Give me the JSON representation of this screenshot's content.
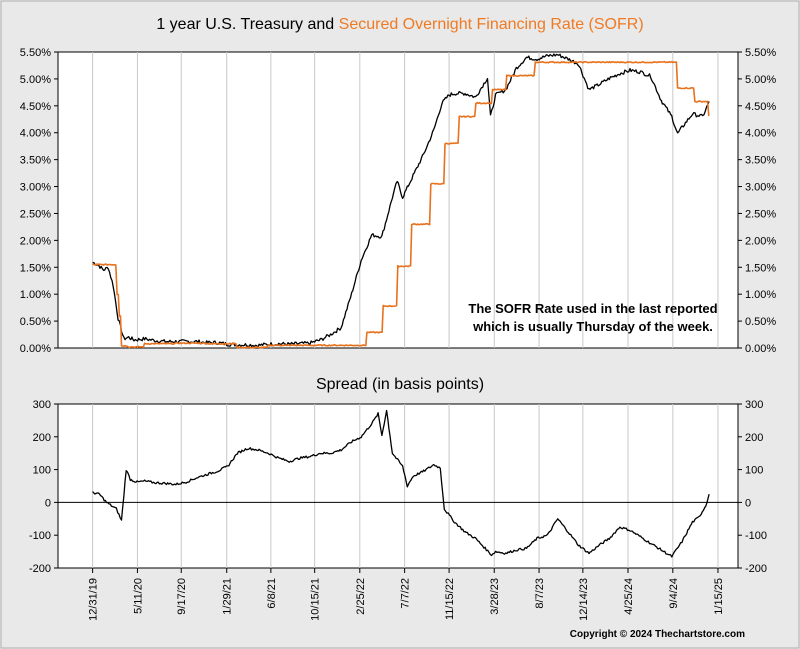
{
  "chart_data": [
    {
      "type": "line",
      "title_part1": "1 year U.S. Treasury and ",
      "title_part2": "Secured Overnight Financing Rate (SOFR)",
      "title_colors": {
        "part1": "#000000",
        "part2": "#f07a22"
      },
      "ylim": [
        0,
        5.5
      ],
      "y_ticks": [
        "0.00%",
        "0.50%",
        "1.00%",
        "1.50%",
        "2.00%",
        "2.50%",
        "3.00%",
        "3.50%",
        "4.00%",
        "4.50%",
        "5.00%",
        "5.50%"
      ],
      "grid": "vertical",
      "annotation_line1": "The SOFR Rate used in the last reported",
      "annotation_line2": "which is usually Thursday of the week.",
      "series": [
        {
          "color": "#000000",
          "points": [
            [
              "2019-12-31",
              1.59
            ],
            [
              "2020-01-15",
              1.55
            ],
            [
              "2020-02-01",
              1.45
            ],
            [
              "2020-02-15",
              1.5
            ],
            [
              "2020-03-01",
              1.15
            ],
            [
              "2020-03-15",
              0.55
            ],
            [
              "2020-04-01",
              0.17
            ],
            [
              "2020-04-15",
              0.2
            ],
            [
              "2020-05-01",
              0.15
            ],
            [
              "2020-06-01",
              0.17
            ],
            [
              "2020-07-01",
              0.14
            ],
            [
              "2020-08-01",
              0.12
            ],
            [
              "2020-09-01",
              0.12
            ],
            [
              "2020-10-01",
              0.12
            ],
            [
              "2020-11-01",
              0.12
            ],
            [
              "2020-12-01",
              0.1
            ],
            [
              "2021-01-01",
              0.1
            ],
            [
              "2021-02-01",
              0.07
            ],
            [
              "2021-03-01",
              0.06
            ],
            [
              "2021-04-01",
              0.06
            ],
            [
              "2021-05-01",
              0.05
            ],
            [
              "2021-06-01",
              0.07
            ],
            [
              "2021-07-01",
              0.08
            ],
            [
              "2021-08-01",
              0.07
            ],
            [
              "2021-09-01",
              0.08
            ],
            [
              "2021-10-01",
              0.09
            ],
            [
              "2021-11-01",
              0.15
            ],
            [
              "2021-12-01",
              0.25
            ],
            [
              "2022-01-01",
              0.38
            ],
            [
              "2022-02-01",
              1.01
            ],
            [
              "2022-03-01",
              1.63
            ],
            [
              "2022-04-01",
              2.1
            ],
            [
              "2022-05-01",
              2.07
            ],
            [
              "2022-06-01",
              2.8
            ],
            [
              "2022-06-15",
              3.1
            ],
            [
              "2022-07-01",
              2.8
            ],
            [
              "2022-08-01",
              3.2
            ],
            [
              "2022-09-01",
              3.6
            ],
            [
              "2022-10-01",
              4.05
            ],
            [
              "2022-10-25",
              4.55
            ],
            [
              "2022-11-15",
              4.7
            ],
            [
              "2022-12-01",
              4.73
            ],
            [
              "2023-01-01",
              4.73
            ],
            [
              "2023-02-01",
              4.66
            ],
            [
              "2023-03-08",
              5.02
            ],
            [
              "2023-03-17",
              4.3
            ],
            [
              "2023-04-01",
              4.7
            ],
            [
              "2023-05-01",
              4.8
            ],
            [
              "2023-06-01",
              5.2
            ],
            [
              "2023-07-01",
              5.4
            ],
            [
              "2023-08-01",
              5.37
            ],
            [
              "2023-09-01",
              5.43
            ],
            [
              "2023-10-01",
              5.45
            ],
            [
              "2023-11-01",
              5.37
            ],
            [
              "2023-12-01",
              5.28
            ],
            [
              "2024-01-01",
              4.8
            ],
            [
              "2024-02-01",
              4.9
            ],
            [
              "2024-03-01",
              5.01
            ],
            [
              "2024-04-01",
              5.1
            ],
            [
              "2024-05-01",
              5.16
            ],
            [
              "2024-06-01",
              5.13
            ],
            [
              "2024-07-01",
              5.05
            ],
            [
              "2024-08-01",
              4.6
            ],
            [
              "2024-09-01",
              4.3
            ],
            [
              "2024-09-18",
              3.98
            ],
            [
              "2024-10-01",
              4.1
            ],
            [
              "2024-11-01",
              4.35
            ],
            [
              "2024-12-01",
              4.3
            ],
            [
              "2024-12-20",
              4.58
            ]
          ]
        },
        {
          "color": "#e8711c",
          "points": [
            [
              "2019-12-31",
              1.55
            ],
            [
              "2020-03-01",
              1.55
            ],
            [
              "2020-03-12",
              1.0
            ],
            [
              "2020-03-19",
              0.6
            ],
            [
              "2020-03-25",
              0.04
            ],
            [
              "2020-04-15",
              0.02
            ],
            [
              "2020-06-01",
              0.08
            ],
            [
              "2020-09-01",
              0.09
            ],
            [
              "2020-12-01",
              0.08
            ],
            [
              "2021-03-01",
              0.01
            ],
            [
              "2021-06-01",
              0.05
            ],
            [
              "2022-01-01",
              0.05
            ],
            [
              "2022-03-18",
              0.29
            ],
            [
              "2022-05-05",
              0.78
            ],
            [
              "2022-06-17",
              1.52
            ],
            [
              "2022-07-28",
              2.3
            ],
            [
              "2022-09-22",
              3.05
            ],
            [
              "2022-11-03",
              3.8
            ],
            [
              "2022-12-15",
              4.3
            ],
            [
              "2023-02-02",
              4.55
            ],
            [
              "2023-03-23",
              4.8
            ],
            [
              "2023-05-04",
              5.06
            ],
            [
              "2023-07-27",
              5.31
            ],
            [
              "2024-09-18",
              4.83
            ],
            [
              "2024-11-08",
              4.58
            ],
            [
              "2024-12-19",
              4.31
            ]
          ]
        }
      ]
    },
    {
      "type": "line",
      "title": "Spread (in basis points)",
      "ylim": [
        -200,
        300
      ],
      "y_ticks": [
        "-200",
        "-100",
        "0",
        "100",
        "200",
        "300"
      ],
      "zero_line": true,
      "series": [
        {
          "color": "#000000",
          "points": [
            [
              "2019-12-31",
              30
            ],
            [
              "2020-01-20",
              25
            ],
            [
              "2020-02-10",
              0
            ],
            [
              "2020-03-10",
              -20
            ],
            [
              "2020-03-25",
              -55
            ],
            [
              "2020-04-08",
              100
            ],
            [
              "2020-04-20",
              70
            ],
            [
              "2020-05-10",
              62
            ],
            [
              "2020-06-01",
              65
            ],
            [
              "2020-07-01",
              60
            ],
            [
              "2020-08-01",
              58
            ],
            [
              "2020-09-01",
              55
            ],
            [
              "2020-10-01",
              62
            ],
            [
              "2020-11-01",
              75
            ],
            [
              "2020-12-01",
              85
            ],
            [
              "2021-01-01",
              95
            ],
            [
              "2021-02-01",
              110
            ],
            [
              "2021-03-01",
              150
            ],
            [
              "2021-04-01",
              165
            ],
            [
              "2021-05-01",
              160
            ],
            [
              "2021-06-01",
              150
            ],
            [
              "2021-07-01",
              135
            ],
            [
              "2021-08-01",
              125
            ],
            [
              "2021-09-01",
              135
            ],
            [
              "2021-10-01",
              140
            ],
            [
              "2021-11-01",
              150
            ],
            [
              "2021-12-01",
              150
            ],
            [
              "2022-01-01",
              160
            ],
            [
              "2022-02-01",
              185
            ],
            [
              "2022-03-01",
              200
            ],
            [
              "2022-04-01",
              240
            ],
            [
              "2022-04-20",
              270
            ],
            [
              "2022-05-01",
              205
            ],
            [
              "2022-05-15",
              280
            ],
            [
              "2022-06-01",
              150
            ],
            [
              "2022-07-01",
              110
            ],
            [
              "2022-07-15",
              50
            ],
            [
              "2022-08-01",
              80
            ],
            [
              "2022-09-01",
              95
            ],
            [
              "2022-10-01",
              115
            ],
            [
              "2022-10-20",
              105
            ],
            [
              "2022-11-01",
              -20
            ],
            [
              "2022-12-01",
              -60
            ],
            [
              "2023-01-01",
              -90
            ],
            [
              "2023-02-01",
              -110
            ],
            [
              "2023-03-01",
              -140
            ],
            [
              "2023-03-20",
              -160
            ],
            [
              "2023-04-01",
              -150
            ],
            [
              "2023-05-01",
              -155
            ],
            [
              "2023-06-01",
              -145
            ],
            [
              "2023-07-01",
              -140
            ],
            [
              "2023-08-01",
              -110
            ],
            [
              "2023-09-01",
              -100
            ],
            [
              "2023-10-01",
              -50
            ],
            [
              "2023-11-01",
              -90
            ],
            [
              "2023-12-01",
              -130
            ],
            [
              "2024-01-01",
              -155
            ],
            [
              "2024-02-01",
              -130
            ],
            [
              "2024-03-01",
              -110
            ],
            [
              "2024-04-01",
              -75
            ],
            [
              "2024-05-01",
              -85
            ],
            [
              "2024-06-01",
              -105
            ],
            [
              "2024-07-01",
              -125
            ],
            [
              "2024-08-01",
              -145
            ],
            [
              "2024-09-01",
              -165
            ],
            [
              "2024-10-01",
              -120
            ],
            [
              "2024-11-01",
              -60
            ],
            [
              "2024-11-20",
              -45
            ],
            [
              "2024-12-10",
              -10
            ],
            [
              "2024-12-20",
              25
            ]
          ]
        }
      ]
    }
  ],
  "x_axis": {
    "tick_labels": [
      "12/31/19",
      "5/11/20",
      "9/17/20",
      "1/29/21",
      "6/8/21",
      "10/15/21",
      "2/25/22",
      "7/7/22",
      "11/15/22",
      "3/28/23",
      "8/7/23",
      "12/14/23",
      "4/25/24",
      "9/4/24",
      "1/15/25"
    ],
    "tick_dates": [
      "2019-12-31",
      "2020-05-11",
      "2020-09-17",
      "2021-01-29",
      "2021-06-08",
      "2021-10-15",
      "2022-02-25",
      "2022-07-07",
      "2022-11-15",
      "2023-03-28",
      "2023-08-07",
      "2023-12-14",
      "2024-04-25",
      "2024-09-04",
      "2025-01-15"
    ]
  },
  "copyright": "Copyright © 2024 Thechartstore.com"
}
